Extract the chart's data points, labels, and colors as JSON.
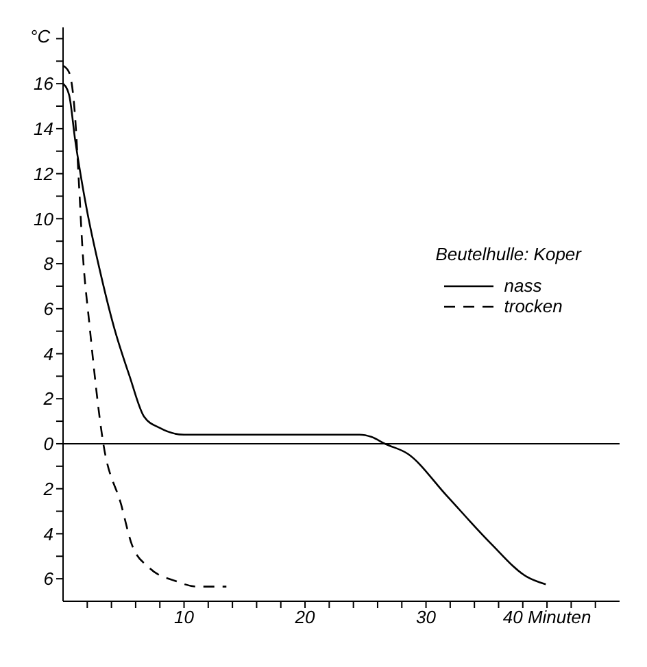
{
  "chart_data": {
    "type": "line",
    "ylabel": "°C",
    "legend_title": "Beutelhulle: Koper",
    "legend": "top right",
    "marker": "none",
    "xlim": [
      0,
      46
    ],
    "xticks": [
      {
        "value": 2,
        "label": null
      },
      {
        "value": 4,
        "label": null
      },
      {
        "value": 6,
        "label": null
      },
      {
        "value": 8,
        "label": null
      },
      10,
      {
        "value": 12,
        "label": null
      },
      {
        "value": 14,
        "label": null
      },
      {
        "value": 16,
        "label": null
      },
      {
        "value": 18,
        "label": null
      },
      20,
      {
        "value": 22,
        "label": null
      },
      {
        "value": 24,
        "label": null
      },
      {
        "value": 26,
        "label": null
      },
      {
        "value": 28,
        "label": null
      },
      30,
      {
        "value": 32,
        "label": null
      },
      {
        "value": 34,
        "label": null
      },
      {
        "value": 36,
        "label": null
      },
      {
        "value": 38,
        "label": null
      },
      {
        "value": 40,
        "label": "40 Minuten"
      },
      {
        "value": 42,
        "label": null
      },
      {
        "value": 44,
        "label": null
      }
    ],
    "ylim": [
      -7,
      18.5
    ],
    "yticks": [
      {
        "value": -6,
        "label": "6"
      },
      {
        "value": -5,
        "label": null
      },
      {
        "value": -4,
        "label": "4"
      },
      {
        "value": -3,
        "label": null
      },
      {
        "value": -2,
        "label": "2"
      },
      {
        "value": -1,
        "label": null
      },
      0,
      {
        "value": 1,
        "label": null
      },
      2,
      {
        "value": 3,
        "label": null
      },
      4,
      {
        "value": 5,
        "label": null
      },
      6,
      {
        "value": 7,
        "label": null
      },
      8,
      {
        "value": 9,
        "label": null
      },
      10,
      {
        "value": 11,
        "label": null
      },
      12,
      {
        "value": 13,
        "label": null
      },
      14,
      {
        "value": 15,
        "label": null
      },
      16,
      {
        "value": 17,
        "label": null
      },
      {
        "value": 18,
        "label": null
      }
    ],
    "ref_lines": [
      {
        "axis": "y",
        "value": 0,
        "color": "#000000"
      }
    ],
    "series": [
      {
        "name": "nass",
        "color": "#000000",
        "line_style": "solid",
        "x": [
          0,
          0.5,
          1,
          1.5,
          2,
          3,
          4.2,
          5.5,
          6.7,
          8,
          10,
          15,
          20,
          24.5,
          25.5,
          26.6,
          28.5,
          31.7,
          35.3,
          38.3,
          39.9
        ],
        "values": [
          16,
          15.5,
          13.5,
          11.8,
          10.3,
          7.8,
          5.2,
          3,
          1.2,
          0.7,
          0.4,
          0.4,
          0.4,
          0.4,
          0.3,
          0,
          -0.45,
          -2.3,
          -4.4,
          -5.9,
          -6.25
        ]
      },
      {
        "name": "trocken",
        "color": "#000000",
        "line_style": "dashed",
        "x": [
          0,
          0.5,
          1,
          1.3,
          1.6,
          2.2,
          3.3,
          4.8,
          5.7,
          7.1,
          9.3,
          11.1,
          13.5
        ],
        "values": [
          16.8,
          16.5,
          14.5,
          11.7,
          8.7,
          5.2,
          0.1,
          -2.7,
          -4.5,
          -5.5,
          -6.1,
          -6.35,
          -6.35
        ]
      }
    ]
  }
}
